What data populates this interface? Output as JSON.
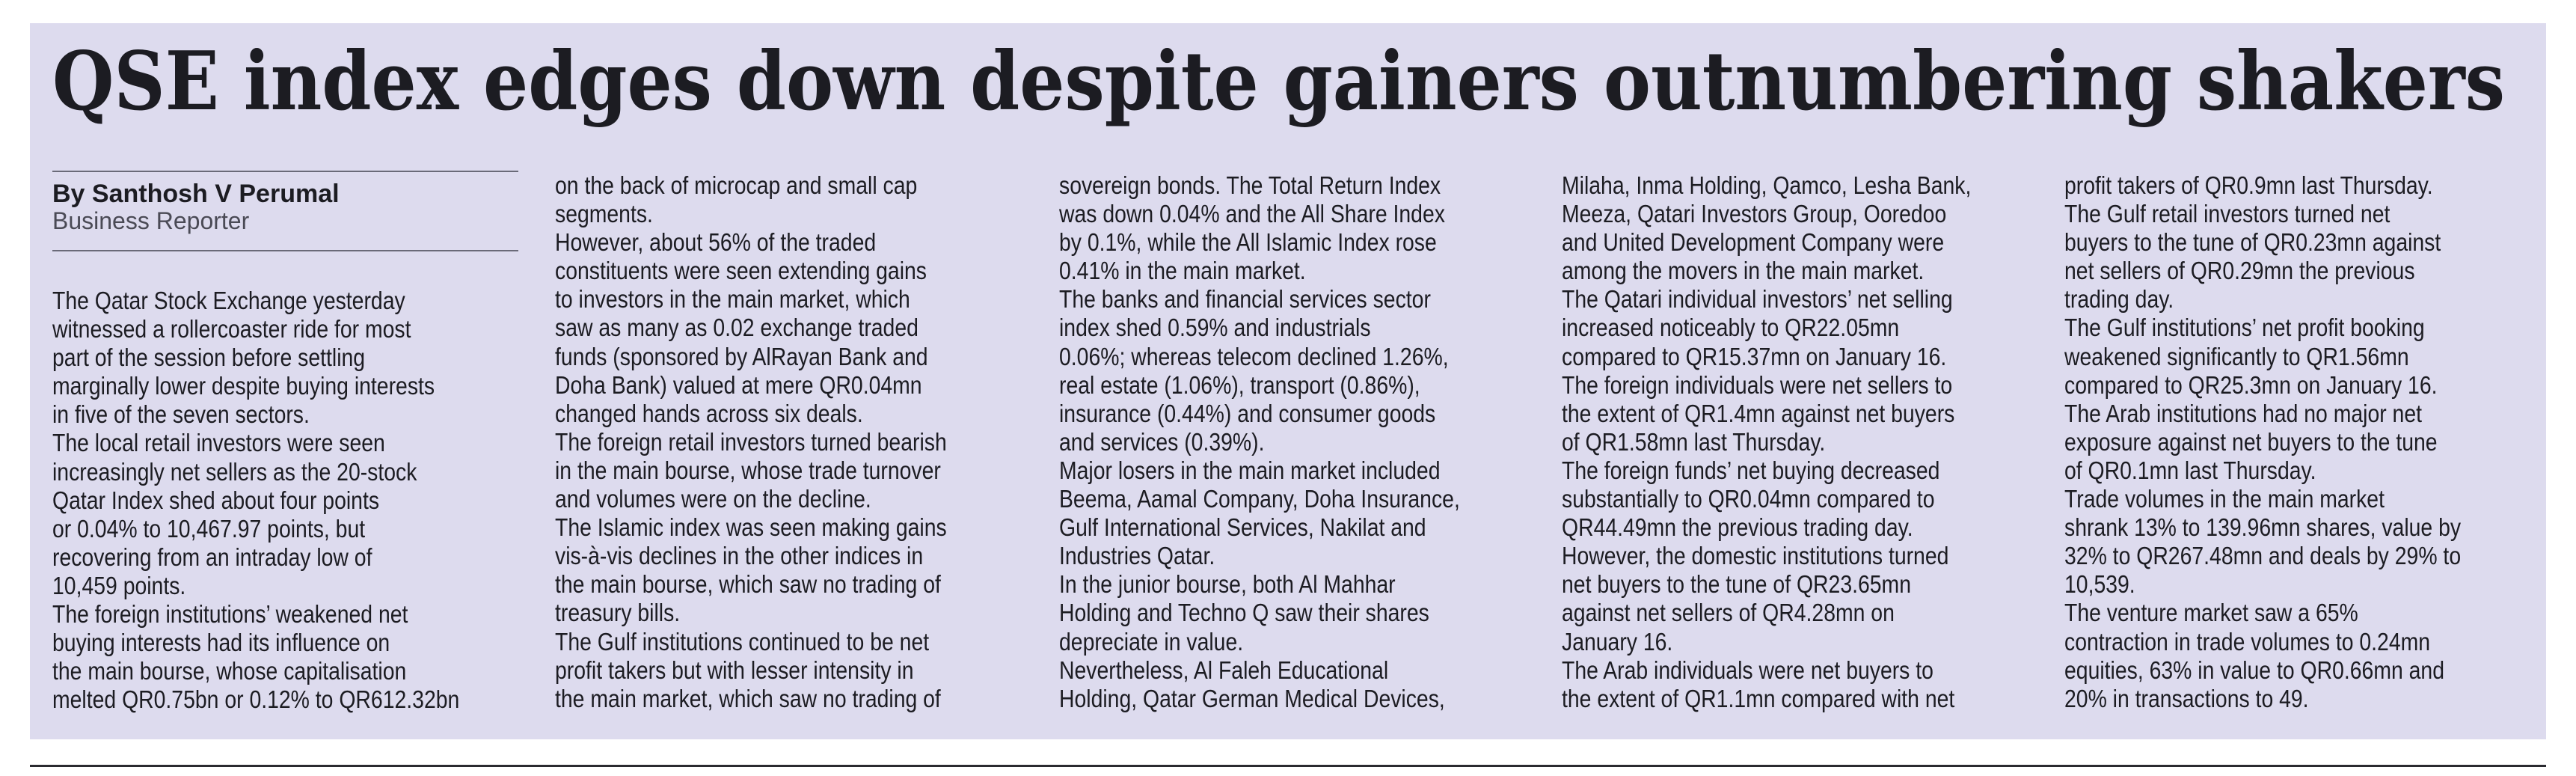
{
  "header": {
    "title": "QSE index edges down despite gainers outnumbering shakers",
    "byline": "By Santhosh V Perumal",
    "role": "Business Reporter"
  },
  "columns": [
    [
      "The Qatar Stock Exchange yesterday",
      "witnessed a rollercoaster ride for most",
      "part of the session before settling",
      "marginally lower despite buying interests",
      "in five of the seven sectors.",
      "The local retail investors were seen",
      "increasingly net sellers as the 20-stock",
      "Qatar Index shed about four points",
      "or 0.04% to 10,467.97 points, but",
      "recovering from an intraday low of",
      "10,459 points.",
      "The foreign institutions’ weakened net",
      "buying interests had its influence on",
      "the main bourse, whose capitalisation",
      "melted QR0.75bn or 0.12% to QR612.32bn"
    ],
    [
      "on the back of microcap and small cap",
      "segments.",
      "However, about 56% of the traded",
      "constituents were seen extending gains",
      "to investors in the main market, which",
      "saw as many as 0.02 exchange traded",
      "funds (sponsored by AlRayan Bank and",
      "Doha Bank) valued at mere QR0.04mn",
      "changed hands across six deals.",
      "The foreign retail investors turned bearish",
      "in the main bourse, whose trade turnover",
      "and volumes were on the decline.",
      "The Islamic index was seen making gains",
      "vis-à-vis declines in the other indices in",
      "the main bourse, which saw no trading of",
      "treasury bills.",
      "The Gulf institutions continued to be net",
      "profit takers but with lesser intensity in",
      "the main market, which saw no trading of"
    ],
    [
      "sovereign bonds. The Total Return Index",
      "was down 0.04% and the All Share Index",
      "by 0.1%, while the All Islamic Index rose",
      "0.41% in the main market.",
      "The banks and financial services sector",
      "index shed 0.59% and industrials",
      "0.06%; whereas telecom declined 1.26%,",
      "real estate (1.06%), transport (0.86%),",
      "insurance (0.44%) and consumer goods",
      "and services (0.39%).",
      "Major losers in the main market included",
      "Beema, Aamal Company, Doha Insurance,",
      "Gulf International Services, Nakilat and",
      "Industries Qatar.",
      "In the junior bourse, both Al Mahhar",
      "Holding and Techno Q saw their shares",
      "depreciate in value.",
      "Nevertheless, Al Faleh Educational",
      "Holding, Qatar German Medical Devices,"
    ],
    [
      "Milaha, Inma Holding, Qamco, Lesha Bank,",
      "Meeza, Qatari Investors Group, Ooredoo",
      "and United Development Company were",
      "among the movers in the main market.",
      "The Qatari individual investors’ net selling",
      "increased noticeably to QR22.05mn",
      "compared to QR15.37mn on January 16.",
      "The foreign individuals were net sellers to",
      "the extent of QR1.4mn against net buyers",
      "of QR1.58mn last Thursday.",
      "The foreign funds’ net buying decreased",
      "substantially to QR0.04mn compared to",
      "QR44.49mn the previous trading day.",
      "However, the domestic institutions turned",
      "net buyers to the tune of QR23.65mn",
      "against net sellers of QR4.28mn on",
      "January 16.",
      "The Arab individuals were net buyers to",
      "the extent of QR1.1mn compared with net"
    ],
    [
      "profit takers of QR0.9mn last Thursday.",
      "The Gulf retail investors turned net",
      "buyers to the tune of QR0.23mn against",
      "net sellers of QR0.29mn the previous",
      "trading day.",
      "The Gulf institutions’ net profit booking",
      "weakened significantly to QR1.56mn",
      "compared to QR25.3mn on January 16.",
      "The Arab institutions had no major net",
      "exposure against net buyers to the tune",
      "of QR0.1mn last Thursday.",
      "Trade volumes in the main market",
      "shrank 13% to 139.96mn shares, value by",
      "32% to QR267.48mn and deals by 29% to",
      "10,539.",
      "The venture market saw a 65%",
      "contraction in trade volumes to 0.24mn",
      "equities, 63% in value to QR0.66mn and",
      "20% in transactions to 49."
    ]
  ]
}
